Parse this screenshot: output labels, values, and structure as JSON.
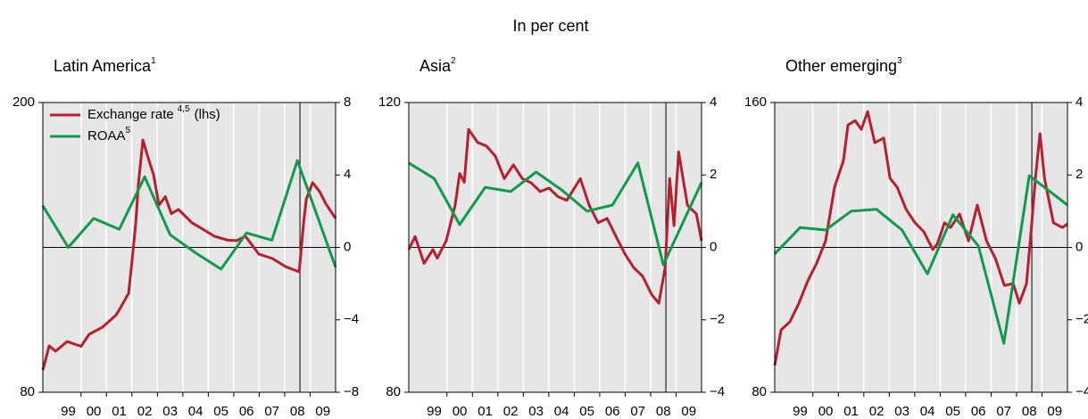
{
  "heading": "In per cent",
  "chart_data": [
    {
      "type": "line",
      "title": "Latin America",
      "title_note": "1",
      "xlim": [
        1998.5,
        2010
      ],
      "ylim": [
        80,
        200
      ],
      "y2lim": [
        -8,
        8
      ],
      "xticks": [
        {
          "value": 1999.5,
          "label": "99"
        },
        {
          "value": 2000.5,
          "label": "00"
        },
        {
          "value": 2001.5,
          "label": "01"
        },
        {
          "value": 2002.5,
          "label": "02"
        },
        {
          "value": 2003.5,
          "label": "03"
        },
        {
          "value": 2004.5,
          "label": "04"
        },
        {
          "value": 2005.5,
          "label": "05"
        },
        {
          "value": 2006.5,
          "label": "06"
        },
        {
          "value": 2007.5,
          "label": "07"
        },
        {
          "value": 2008.5,
          "label": "08"
        },
        {
          "value": 2009.5,
          "label": "09"
        }
      ],
      "yticks": [
        80,
        200
      ],
      "y2ticks": [
        {
          "value": -8,
          "label": "−8"
        },
        {
          "value": -4,
          "label": "−4"
        },
        0,
        4,
        8
      ],
      "zero_line": true,
      "vline": 2008.6,
      "legend": "upper left",
      "series": [
        {
          "name": "Exchange rate",
          "note": "4,5",
          "axis_label": "(lhs)",
          "color": "#b3202f",
          "x": [
            1998.5,
            1998.75,
            1999.0,
            1999.45,
            2000.0,
            2000.32,
            2000.85,
            2001.38,
            2001.55,
            2001.87,
            2002.01,
            2002.15,
            2002.25,
            2002.43,
            2002.61,
            2002.85,
            2003.06,
            2003.31,
            2003.55,
            2003.83,
            2004.36,
            2004.71,
            2005.24,
            2005.76,
            2006.11,
            2006.46,
            2006.99,
            2007.52,
            2008.04,
            2008.57,
            2008.74,
            2008.85,
            2009.1,
            2009.38,
            2009.62,
            2010.0
          ],
          "values": [
            89.2,
            99.2,
            97,
            101,
            99,
            104,
            107,
            112,
            115,
            121,
            135,
            150,
            166,
            184.5,
            178,
            170,
            157.5,
            161,
            154,
            155.7,
            150.2,
            148,
            144.6,
            143,
            142.8,
            144.6,
            137.2,
            135.4,
            132,
            129.9,
            150,
            160,
            166.8,
            163,
            158,
            152
          ]
        },
        {
          "name": "ROAA",
          "note": "5",
          "axis": "y2",
          "color": "#119a4b",
          "x": [
            1998.5,
            1999.5,
            2000.5,
            2001.5,
            2002.5,
            2003.5,
            2004.5,
            2005.5,
            2006.5,
            2007.5,
            2008.5,
            2010
          ],
          "values": [
            2.3,
            0,
            1.6,
            1.0,
            3.9,
            0.7,
            -0.3,
            -1.2,
            0.8,
            0.4,
            4.8,
            -1.1
          ]
        }
      ]
    },
    {
      "type": "line",
      "title": "Asia",
      "title_note": "2",
      "xlim": [
        1998.5,
        2010
      ],
      "ylim": [
        80,
        120
      ],
      "y2lim": [
        -4,
        4
      ],
      "xticks": [
        {
          "value": 1999.5,
          "label": "99"
        },
        {
          "value": 2000.5,
          "label": "00"
        },
        {
          "value": 2001.5,
          "label": "01"
        },
        {
          "value": 2002.5,
          "label": "02"
        },
        {
          "value": 2003.5,
          "label": "03"
        },
        {
          "value": 2004.5,
          "label": "04"
        },
        {
          "value": 2005.5,
          "label": "05"
        },
        {
          "value": 2006.5,
          "label": "06"
        },
        {
          "value": 2007.5,
          "label": "07"
        },
        {
          "value": 2008.5,
          "label": "08"
        },
        {
          "value": 2009.5,
          "label": "09"
        }
      ],
      "yticks": [
        80,
        120
      ],
      "y2ticks": [
        {
          "value": -4,
          "label": "−4"
        },
        {
          "value": -2,
          "label": "−2"
        },
        0,
        2,
        4
      ],
      "zero_line": true,
      "vline": 2008.6,
      "series": [
        {
          "color": "#b3202f",
          "x": [
            1998.5,
            1998.75,
            1999.1,
            1999.45,
            1999.62,
            1999.97,
            2000.32,
            2000.5,
            2000.68,
            2000.85,
            2001.2,
            2001.55,
            2001.9,
            2002.25,
            2002.61,
            2002.96,
            2003.31,
            2003.66,
            2004.01,
            2004.36,
            2004.71,
            2005.24,
            2005.59,
            2005.94,
            2006.29,
            2006.64,
            2006.99,
            2007.34,
            2007.69,
            2008.04,
            2008.32,
            2008.57,
            2008.75,
            2008.92,
            2009.1,
            2009.45,
            2009.8,
            2010.0
          ],
          "values": [
            99.7,
            101.5,
            97.8,
            99.7,
            98.5,
            100.9,
            105.8,
            110.2,
            109,
            116.3,
            114.5,
            114,
            112.6,
            109.5,
            111.4,
            109.5,
            108.9,
            107.7,
            108.2,
            107,
            106.5,
            109.5,
            105.8,
            103.4,
            104,
            101.5,
            99.1,
            97.2,
            96,
            93.5,
            92.3,
            97.2,
            109.5,
            103,
            113.2,
            105.8,
            104.6,
            100.9
          ]
        },
        {
          "axis": "y2",
          "color": "#119a4b",
          "x": [
            1998.5,
            1999.5,
            2000.5,
            2001.5,
            2002.5,
            2003.5,
            2004.5,
            2005.5,
            2006.5,
            2007.5,
            2008.5,
            2010
          ],
          "values": [
            2.33,
            1.9,
            0.63,
            1.66,
            1.54,
            2.08,
            1.59,
            1.0,
            1.17,
            2.33,
            -0.48,
            1.79
          ]
        }
      ]
    },
    {
      "type": "line",
      "title": "Other emerging",
      "title_note": "3",
      "xlim": [
        1998.5,
        2010
      ],
      "ylim": [
        80,
        160
      ],
      "y2lim": [
        -4,
        4
      ],
      "xticks": [
        {
          "value": 1999.5,
          "label": "99"
        },
        {
          "value": 2000.5,
          "label": "00"
        },
        {
          "value": 2001.5,
          "label": "01"
        },
        {
          "value": 2002.5,
          "label": "02"
        },
        {
          "value": 2003.5,
          "label": "03"
        },
        {
          "value": 2004.5,
          "label": "04"
        },
        {
          "value": 2005.5,
          "label": "05"
        },
        {
          "value": 2006.5,
          "label": "06"
        },
        {
          "value": 2007.5,
          "label": "07"
        },
        {
          "value": 2008.5,
          "label": "08"
        },
        {
          "value": 2009.5,
          "label": "09"
        }
      ],
      "yticks": [
        80,
        160
      ],
      "y2ticks": [
        {
          "value": -4,
          "label": "−4"
        },
        {
          "value": -2,
          "label": "−2"
        },
        0,
        2,
        4
      ],
      "zero_line": true,
      "vline": 2008.6,
      "series": [
        {
          "color": "#b3202f",
          "x": [
            1998.5,
            1998.75,
            1999.1,
            1999.45,
            1999.8,
            2000.15,
            2000.5,
            2000.85,
            2001.2,
            2001.38,
            2001.66,
            2001.9,
            2002.15,
            2002.43,
            2002.78,
            2003.03,
            2003.31,
            2003.66,
            2004.01,
            2004.36,
            2004.71,
            2004.89,
            2005.17,
            2005.41,
            2005.76,
            2006.11,
            2006.46,
            2006.82,
            2007.17,
            2007.52,
            2007.87,
            2008.11,
            2008.39,
            2008.57,
            2008.74,
            2008.92,
            2009.1,
            2009.45,
            2009.8,
            2010.0
          ],
          "values": [
            87.4,
            97.2,
            99.5,
            104.6,
            110.8,
            115.7,
            121.8,
            136.6,
            144,
            153.8,
            155,
            152.6,
            157.5,
            148.9,
            150.2,
            139.1,
            136.6,
            130.5,
            126.8,
            124.3,
            119.4,
            121,
            126.8,
            125.5,
            129.2,
            121.8,
            131.7,
            121.8,
            116.9,
            109.5,
            110,
            104.6,
            110,
            124.3,
            139.1,
            151.4,
            139,
            126.8,
            125.5,
            126.5
          ]
        },
        {
          "axis": "y2",
          "color": "#119a4b",
          "x": [
            1998.5,
            1999.5,
            2000.5,
            2001.5,
            2002.5,
            2003.5,
            2004.5,
            2005.5,
            2006.5,
            2007.5,
            2008.5,
            2010
          ],
          "values": [
            -0.18,
            0.55,
            0.48,
            1.0,
            1.05,
            0.48,
            -0.73,
            0.9,
            0.04,
            -2.65,
            1.98,
            1.17
          ]
        }
      ]
    }
  ]
}
